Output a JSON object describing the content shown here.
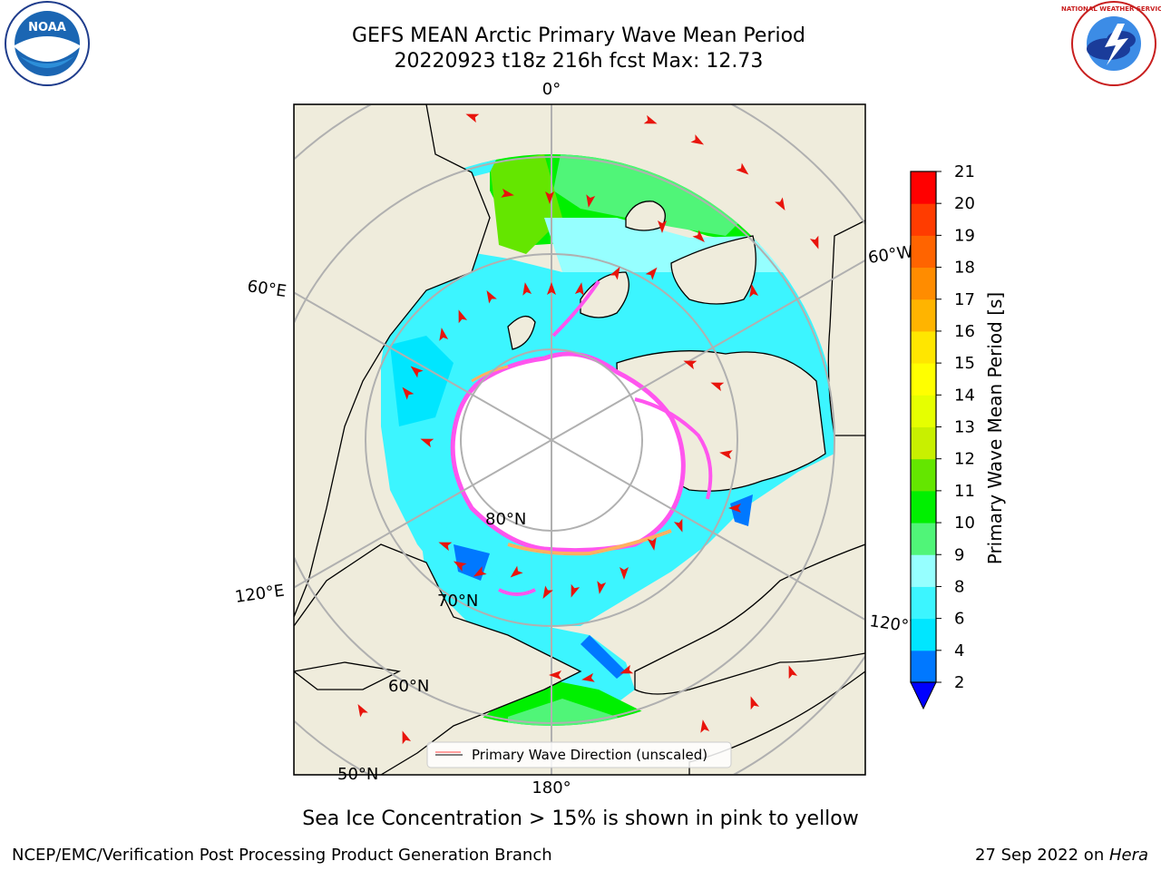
{
  "header": {
    "title_line1": "GEFS MEAN Arctic Primary Wave Mean Period",
    "title_line2": "20220923 t18z 216h fcst   Max: 12.73"
  },
  "logos": {
    "left": {
      "name": "NOAA",
      "text": "NOAA"
    },
    "right": {
      "name": "National Weather Service",
      "text": "NATIONAL WEATHER SERVICE"
    }
  },
  "map": {
    "projection": "north polar stereographic",
    "longitude_labels": [
      "0°",
      "60°E",
      "120°E",
      "180°",
      "60°W",
      "120°W"
    ],
    "latitude_labels": [
      "80°N",
      "70°N",
      "60°N",
      "50°N"
    ],
    "legend": {
      "label": "Primary Wave Direction (unscaled)",
      "color": "#ff0000"
    },
    "colors": {
      "land": "#efecdc",
      "ice": "#ffffff",
      "coast": "#000000",
      "grid": "#b0b0b0",
      "arrow": "#e8140c"
    }
  },
  "colorbar": {
    "label": "Primary Wave Mean Period [s]",
    "ticks": [
      "21",
      "20",
      "19",
      "18",
      "17",
      "16",
      "15",
      "14",
      "13",
      "12",
      "11",
      "10",
      "9",
      "8",
      "6",
      "4",
      "2"
    ],
    "levels": [
      {
        "from": 2,
        "to": 4,
        "color": "#0078ff"
      },
      {
        "from": 4,
        "to": 6,
        "color": "#00e6ff"
      },
      {
        "from": 6,
        "to": 8,
        "color": "#3cf5ff"
      },
      {
        "from": 8,
        "to": 9,
        "color": "#96ffff"
      },
      {
        "from": 9,
        "to": 10,
        "color": "#50f578"
      },
      {
        "from": 10,
        "to": 11,
        "color": "#00f000"
      },
      {
        "from": 11,
        "to": 12,
        "color": "#64e600"
      },
      {
        "from": 12,
        "to": 13,
        "color": "#c8f000"
      },
      {
        "from": 13,
        "to": 14,
        "color": "#e6ff00"
      },
      {
        "from": 14,
        "to": 15,
        "color": "#ffff00"
      },
      {
        "from": 15,
        "to": 16,
        "color": "#ffe600"
      },
      {
        "from": 16,
        "to": 17,
        "color": "#ffb400"
      },
      {
        "from": 17,
        "to": 18,
        "color": "#ff8c00"
      },
      {
        "from": 18,
        "to": 19,
        "color": "#ff6400"
      },
      {
        "from": 19,
        "to": 20,
        "color": "#ff3c00"
      },
      {
        "from": 20,
        "to": 21,
        "color": "#ff0000"
      }
    ],
    "under_color": "#0000ff"
  },
  "note": "Sea Ice Concentration > 15% is shown in pink to yellow",
  "footer": {
    "left": "NCEP/EMC/Verification Post Processing Product Generation Branch",
    "right_date": "27 Sep 2022 on ",
    "right_machine": "Hera"
  }
}
